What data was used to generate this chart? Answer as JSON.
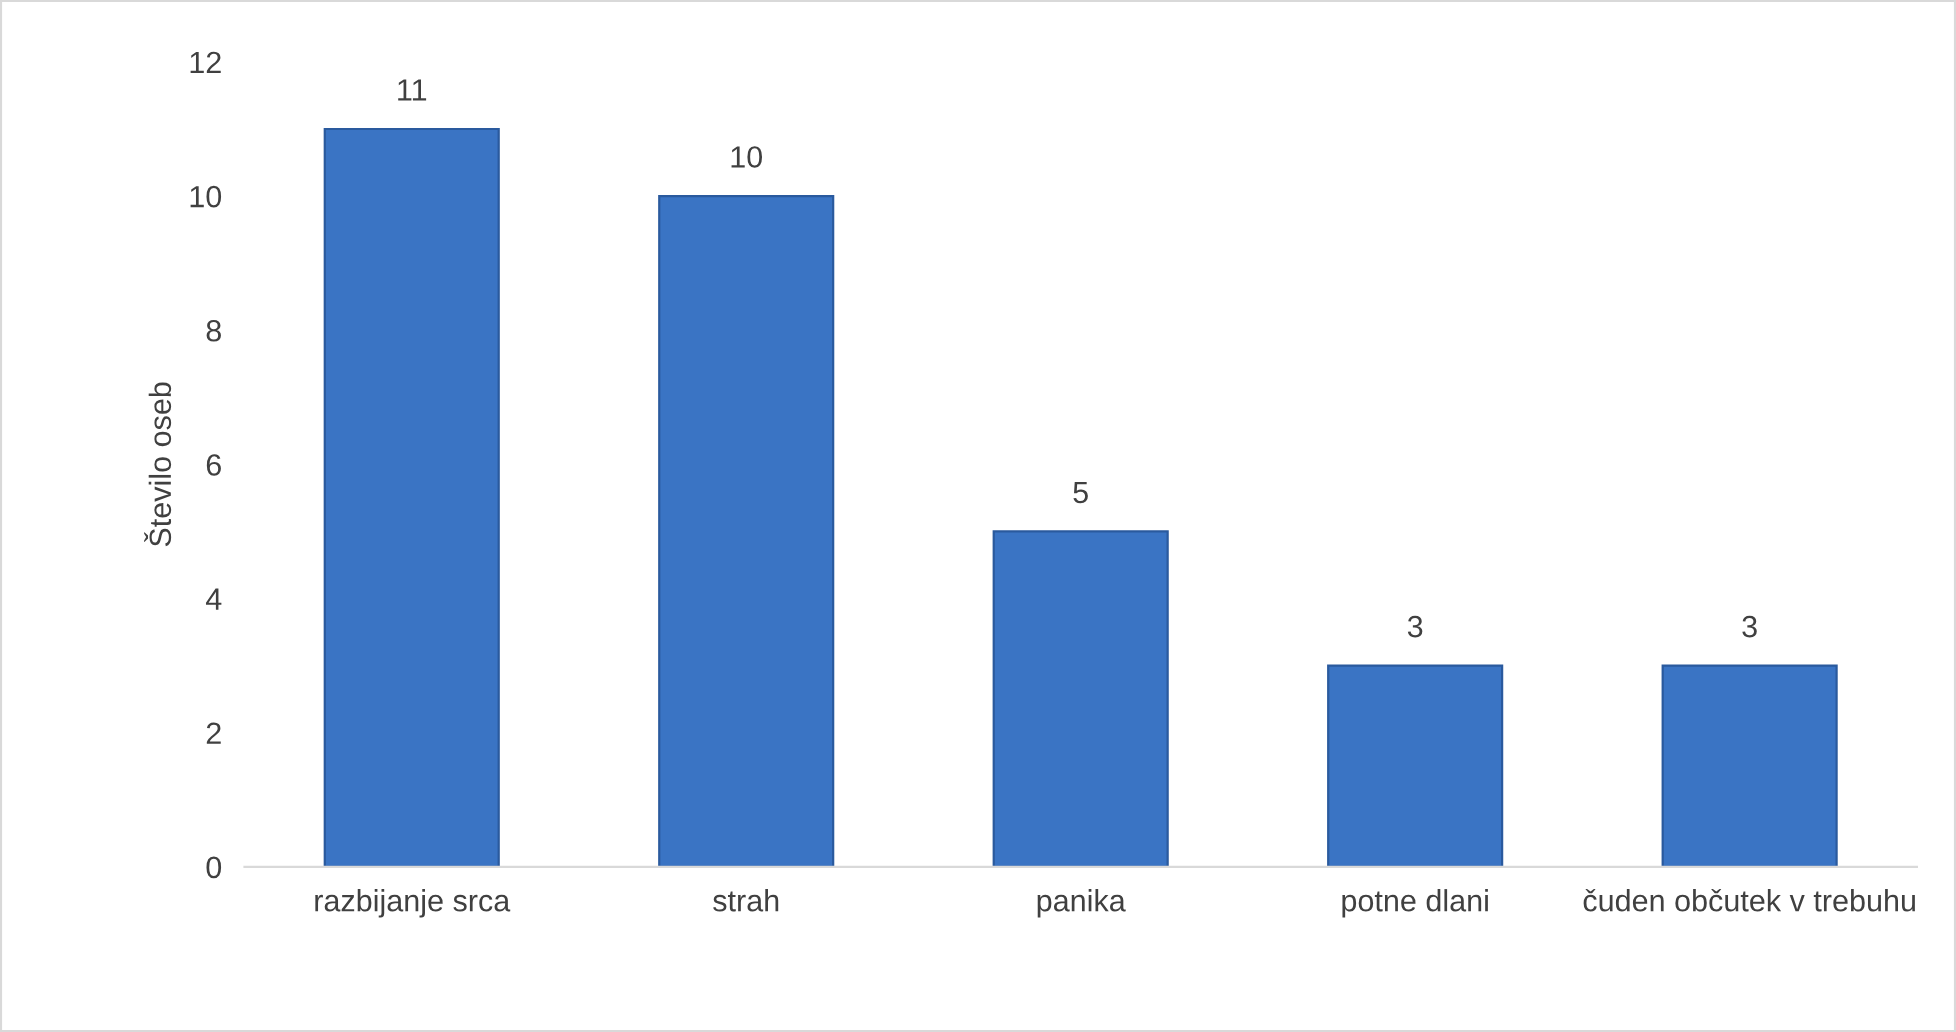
{
  "chart_data": {
    "type": "bar",
    "ylabel": "Število oseb",
    "categories": [
      "razbijanje srca",
      "strah",
      "panika",
      "potne dlani",
      "čuden občutek v trebuhu"
    ],
    "values": [
      11,
      10,
      5,
      3,
      3
    ],
    "color": "#3a74c4",
    "ylim": [
      0,
      12
    ],
    "yticks": [
      0,
      2,
      4,
      6,
      8,
      10,
      12
    ],
    "grid": false,
    "data_labels": true
  }
}
